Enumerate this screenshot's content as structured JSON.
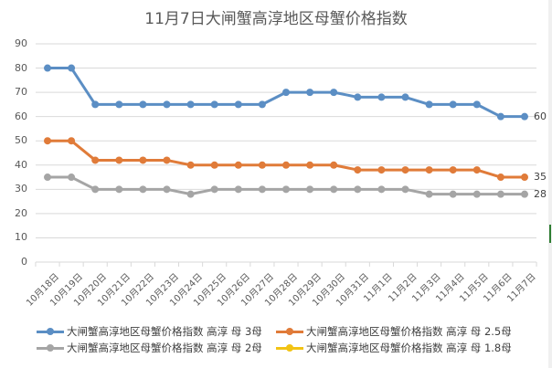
{
  "chart_data": {
    "type": "line",
    "title": "11月7日大闸蟹高淳地区母蟹价格指数",
    "xlabel": "",
    "ylabel": "",
    "ylim": [
      0,
      90
    ],
    "yticks": [
      0,
      10,
      20,
      30,
      40,
      50,
      60,
      70,
      80,
      90
    ],
    "grid": true,
    "legend_position": "bottom",
    "categories": [
      "10月18日",
      "10月19日",
      "10月20日",
      "10月21日",
      "10月22日",
      "10月23日",
      "10月24日",
      "10月25日",
      "10月26日",
      "10月27日",
      "10月28日",
      "10月29日",
      "10月30日",
      "10月31日",
      "11月1日",
      "11月2日",
      "11月3日",
      "11月4日",
      "11月5日",
      "11月6日",
      "11月7日"
    ],
    "series": [
      {
        "name": "大闸蟹高淳地区母蟹价格指数 高淳 母 3母",
        "color": "#5b8ec4",
        "values": [
          80,
          80,
          65,
          65,
          65,
          65,
          65,
          65,
          65,
          65,
          70,
          70,
          70,
          68,
          68,
          68,
          65,
          65,
          65,
          60,
          60
        ],
        "end_label": "60"
      },
      {
        "name": "大闸蟹高淳地区母蟹价格指数 高淳 母 2.5母",
        "color": "#e07b39",
        "values": [
          50,
          50,
          42,
          42,
          42,
          42,
          40,
          40,
          40,
          40,
          40,
          40,
          40,
          38,
          38,
          38,
          38,
          38,
          38,
          35,
          35
        ],
        "end_label": "35"
      },
      {
        "name": "大闸蟹高淳地区母蟹价格指数 高淳 母 2母",
        "color": "#a5a5a5",
        "values": [
          35,
          35,
          30,
          30,
          30,
          30,
          28,
          30,
          30,
          30,
          30,
          30,
          30,
          30,
          30,
          30,
          28,
          28,
          28,
          28,
          28
        ],
        "end_label": "28"
      },
      {
        "name": "大闸蟹高淳地区母蟹价格指数 高淳 母 1.8母",
        "color": "#f2c314",
        "values": []
      }
    ]
  }
}
